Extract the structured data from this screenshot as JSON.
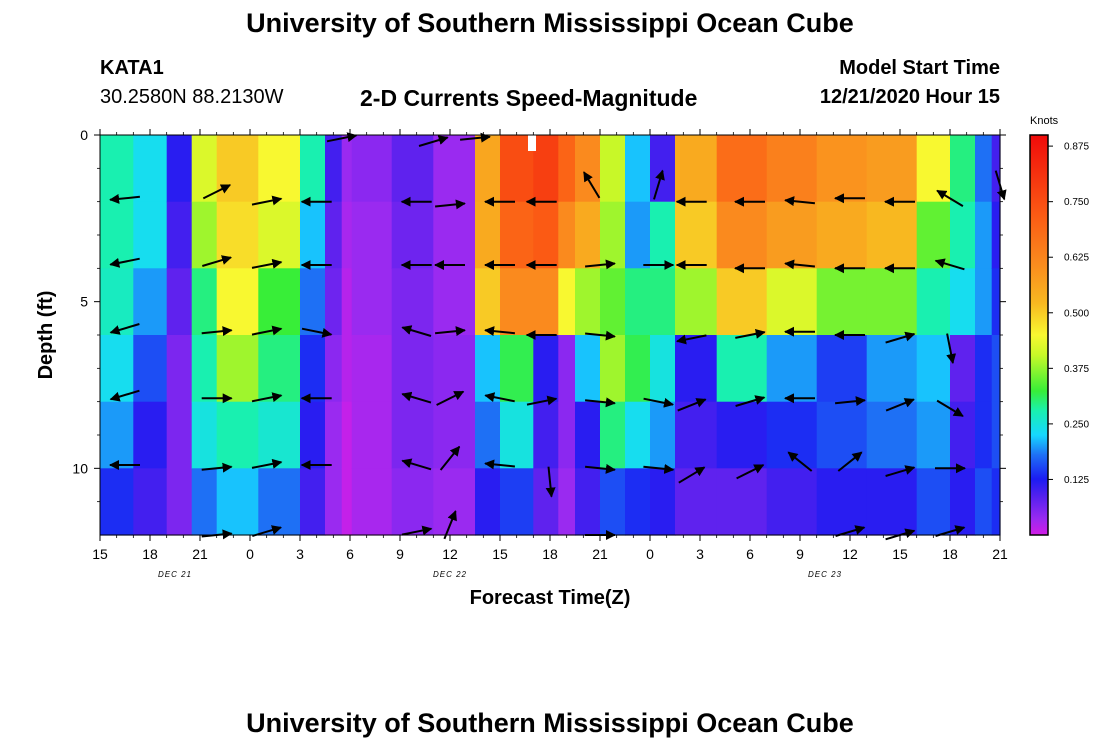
{
  "page": {
    "title": "University of Southern Mississippi Ocean Cube",
    "footer_title": "University of Southern Mississippi Ocean Cube",
    "station": "KATA1",
    "coords": "30.2580N 88.2130W",
    "chart_title": "2-D Currents Speed-Magnitude",
    "model_start_label": "Model Start Time",
    "model_start_value": "12/21/2020 Hour 15"
  },
  "chart_data": {
    "type": "heatmap",
    "title": "2-D Currents Speed-Magnitude",
    "xlabel": "Forecast Time(Z)",
    "ylabel": "Depth (ft)",
    "xlim": [
      15,
      69
    ],
    "ylim": [
      0,
      12
    ],
    "x_ticks": [
      {
        "x": 15,
        "label": "15"
      },
      {
        "x": 18,
        "label": "18"
      },
      {
        "x": 21,
        "label": "21"
      },
      {
        "x": 24,
        "label": "0"
      },
      {
        "x": 27,
        "label": "3"
      },
      {
        "x": 30,
        "label": "6"
      },
      {
        "x": 33,
        "label": "9"
      },
      {
        "x": 36,
        "label": "12"
      },
      {
        "x": 39,
        "label": "15"
      },
      {
        "x": 42,
        "label": "18"
      },
      {
        "x": 45,
        "label": "21"
      },
      {
        "x": 48,
        "label": "0"
      },
      {
        "x": 51,
        "label": "3"
      },
      {
        "x": 54,
        "label": "6"
      },
      {
        "x": 57,
        "label": "9"
      },
      {
        "x": 60,
        "label": "12"
      },
      {
        "x": 63,
        "label": "15"
      },
      {
        "x": 66,
        "label": "18"
      },
      {
        "x": 69,
        "label": "21"
      }
    ],
    "date_labels": [
      {
        "x": 19.5,
        "label": "DEC 21"
      },
      {
        "x": 36.0,
        "label": "DEC 22"
      },
      {
        "x": 58.5,
        "label": "DEC 23"
      }
    ],
    "y_ticks": [
      {
        "y": 0,
        "label": "0"
      },
      {
        "y": 5,
        "label": "5"
      },
      {
        "y": 10,
        "label": "10"
      }
    ],
    "colorbar": {
      "unit": "Knots",
      "min": 0,
      "max": 0.9,
      "ticks": [
        "0.875",
        "0.750",
        "0.625",
        "0.500",
        "0.375",
        "0.250",
        "0.125"
      ],
      "tick_values": [
        0.875,
        0.75,
        0.625,
        0.5,
        0.375,
        0.25,
        0.125
      ]
    },
    "depth_bands_ft": [
      0,
      2,
      4,
      6,
      8,
      10,
      12
    ],
    "speed_profiles_knots": [
      {
        "x_range": [
          15,
          17
        ],
        "values": [
          0.28,
          0.28,
          0.27,
          0.24,
          0.2,
          0.14
        ]
      },
      {
        "x_range": [
          17,
          19
        ],
        "values": [
          0.24,
          0.24,
          0.2,
          0.16,
          0.12,
          0.1
        ]
      },
      {
        "x_range": [
          19,
          20.5
        ],
        "values": [
          0.12,
          0.1,
          0.08,
          0.06,
          0.06,
          0.06
        ]
      },
      {
        "x_range": [
          20.5,
          22
        ],
        "values": [
          0.42,
          0.38,
          0.3,
          0.28,
          0.25,
          0.18
        ]
      },
      {
        "x_range": [
          22,
          24.5
        ],
        "values": [
          0.5,
          0.48,
          0.45,
          0.38,
          0.28,
          0.22
        ]
      },
      {
        "x_range": [
          24.5,
          27
        ],
        "values": [
          0.45,
          0.42,
          0.33,
          0.3,
          0.26,
          0.18
        ]
      },
      {
        "x_range": [
          27,
          28.5
        ],
        "values": [
          0.28,
          0.22,
          0.18,
          0.14,
          0.12,
          0.1
        ]
      },
      {
        "x_range": [
          28.5,
          29.5
        ],
        "values": [
          0.1,
          0.08,
          0.07,
          0.05,
          0.04,
          0.04
        ]
      },
      {
        "x_range": [
          29.5,
          30.1
        ],
        "values": [
          0.04,
          0.03,
          0.02,
          0.02,
          0.01,
          0.01
        ]
      },
      {
        "x_range": [
          30.1,
          32.5
        ],
        "values": [
          0.05,
          0.04,
          0.04,
          0.03,
          0.03,
          0.03
        ]
      },
      {
        "x_range": [
          32.5,
          35
        ],
        "values": [
          0.08,
          0.07,
          0.06,
          0.06,
          0.06,
          0.05
        ]
      },
      {
        "x_range": [
          35,
          37.5
        ],
        "values": [
          0.04,
          0.04,
          0.04,
          0.05,
          0.05,
          0.04
        ]
      },
      {
        "x_range": [
          37.5,
          39
        ],
        "values": [
          0.56,
          0.55,
          0.5,
          0.22,
          0.18,
          0.12
        ]
      },
      {
        "x_range": [
          39,
          41
        ],
        "values": [
          0.75,
          0.7,
          0.62,
          0.32,
          0.25,
          0.15
        ]
      },
      {
        "x_range": [
          41,
          42.5
        ],
        "values": [
          0.78,
          0.72,
          0.62,
          0.12,
          0.1,
          0.08
        ]
      },
      {
        "x_range": [
          42.5,
          43.5
        ],
        "values": [
          0.7,
          0.62,
          0.45,
          0.05,
          0.05,
          0.04
        ]
      },
      {
        "x_range": [
          43.5,
          45
        ],
        "values": [
          0.62,
          0.55,
          0.38,
          0.22,
          0.12,
          0.1
        ]
      },
      {
        "x_range": [
          45,
          46.5
        ],
        "values": [
          0.4,
          0.38,
          0.35,
          0.38,
          0.3,
          0.16
        ]
      },
      {
        "x_range": [
          46.5,
          48
        ],
        "values": [
          0.22,
          0.2,
          0.3,
          0.32,
          0.24,
          0.14
        ]
      },
      {
        "x_range": [
          48,
          49.5
        ],
        "values": [
          0.1,
          0.28,
          0.3,
          0.25,
          0.2,
          0.12
        ]
      },
      {
        "x_range": [
          49.5,
          52
        ],
        "values": [
          0.55,
          0.5,
          0.38,
          0.12,
          0.1,
          0.08
        ]
      },
      {
        "x_range": [
          52,
          55
        ],
        "values": [
          0.68,
          0.62,
          0.5,
          0.28,
          0.12,
          0.08
        ]
      },
      {
        "x_range": [
          55,
          58
        ],
        "values": [
          0.64,
          0.58,
          0.42,
          0.2,
          0.14,
          0.1
        ]
      },
      {
        "x_range": [
          58,
          61
        ],
        "values": [
          0.6,
          0.55,
          0.36,
          0.15,
          0.16,
          0.12
        ]
      },
      {
        "x_range": [
          61,
          64
        ],
        "values": [
          0.58,
          0.52,
          0.36,
          0.2,
          0.18,
          0.12
        ]
      },
      {
        "x_range": [
          64,
          66
        ],
        "values": [
          0.45,
          0.35,
          0.28,
          0.22,
          0.2,
          0.16
        ]
      },
      {
        "x_range": [
          66,
          67.5
        ],
        "values": [
          0.3,
          0.28,
          0.24,
          0.08,
          0.1,
          0.12
        ]
      },
      {
        "x_range": [
          67.5,
          68.5
        ],
        "values": [
          0.18,
          0.2,
          0.2,
          0.14,
          0.14,
          0.16
        ]
      },
      {
        "x_range": [
          68.5,
          69
        ],
        "values": [
          0.1,
          0.12,
          0.14,
          0.16,
          0.16,
          0.14
        ]
      }
    ],
    "vectors": [
      {
        "x": 16.5,
        "d": 1.9,
        "dx": -1,
        "dy": -0.1
      },
      {
        "x": 16.5,
        "d": 3.8,
        "dx": -1,
        "dy": -0.2
      },
      {
        "x": 16.5,
        "d": 5.8,
        "dx": -1,
        "dy": -0.3
      },
      {
        "x": 16.5,
        "d": 7.8,
        "dx": -1,
        "dy": -0.3
      },
      {
        "x": 16.5,
        "d": 9.9,
        "dx": -1,
        "dy": 0
      },
      {
        "x": 22,
        "d": 1.7,
        "dx": 1,
        "dy": 0.5
      },
      {
        "x": 22,
        "d": 3.8,
        "dx": 1,
        "dy": 0.3
      },
      {
        "x": 22,
        "d": 5.9,
        "dx": 1,
        "dy": 0.1
      },
      {
        "x": 22,
        "d": 7.9,
        "dx": 1,
        "dy": 0
      },
      {
        "x": 22,
        "d": 10,
        "dx": 1,
        "dy": 0.1
      },
      {
        "x": 22,
        "d": 12,
        "dx": 1,
        "dy": 0.1
      },
      {
        "x": 25,
        "d": 2,
        "dx": 1,
        "dy": 0.2
      },
      {
        "x": 25,
        "d": 3.9,
        "dx": 1,
        "dy": 0.2
      },
      {
        "x": 25,
        "d": 5.9,
        "dx": 1,
        "dy": 0.2
      },
      {
        "x": 25,
        "d": 7.9,
        "dx": 1,
        "dy": 0.2
      },
      {
        "x": 25,
        "d": 9.9,
        "dx": 1,
        "dy": 0.2
      },
      {
        "x": 25,
        "d": 11.9,
        "dx": 1,
        "dy": 0.3
      },
      {
        "x": 28,
        "d": 2,
        "dx": -1,
        "dy": 0
      },
      {
        "x": 28,
        "d": 3.9,
        "dx": -1,
        "dy": 0
      },
      {
        "x": 28,
        "d": 5.9,
        "dx": 1,
        "dy": -0.2
      },
      {
        "x": 28,
        "d": 7.9,
        "dx": -1,
        "dy": 0
      },
      {
        "x": 28,
        "d": 9.9,
        "dx": -1,
        "dy": 0
      },
      {
        "x": 29.5,
        "d": 0.1,
        "dx": 1,
        "dy": 0.2
      },
      {
        "x": 34,
        "d": 2,
        "dx": -1,
        "dy": 0
      },
      {
        "x": 34,
        "d": 3.9,
        "dx": -1,
        "dy": 0
      },
      {
        "x": 34,
        "d": 5.9,
        "dx": -1,
        "dy": 0.3
      },
      {
        "x": 34,
        "d": 7.9,
        "dx": -1,
        "dy": 0.3
      },
      {
        "x": 34,
        "d": 9.9,
        "dx": -1,
        "dy": 0.3
      },
      {
        "x": 34,
        "d": 11.9,
        "dx": 1,
        "dy": 0.2
      },
      {
        "x": 35,
        "d": 0.2,
        "dx": 1,
        "dy": 0.3
      },
      {
        "x": 37.5,
        "d": 0.1,
        "dx": 1,
        "dy": 0.1
      },
      {
        "x": 36,
        "d": 2.1,
        "dx": 1,
        "dy": 0.1
      },
      {
        "x": 36,
        "d": 3.9,
        "dx": -1,
        "dy": 0
      },
      {
        "x": 36,
        "d": 5.9,
        "dx": 1,
        "dy": 0.1
      },
      {
        "x": 36,
        "d": 7.9,
        "dx": 1,
        "dy": 0.5
      },
      {
        "x": 36,
        "d": 9.7,
        "dx": 0.8,
        "dy": 1
      },
      {
        "x": 36,
        "d": 11.7,
        "dx": 0.4,
        "dy": 1
      },
      {
        "x": 39,
        "d": 2,
        "dx": -1,
        "dy": 0
      },
      {
        "x": 39,
        "d": 3.9,
        "dx": -1,
        "dy": 0
      },
      {
        "x": 39,
        "d": 5.9,
        "dx": -1,
        "dy": 0.1
      },
      {
        "x": 39,
        "d": 7.9,
        "dx": -1,
        "dy": 0.2
      },
      {
        "x": 39,
        "d": 9.9,
        "dx": -1,
        "dy": 0.1
      },
      {
        "x": 41.5,
        "d": 2,
        "dx": -1,
        "dy": 0
      },
      {
        "x": 41.5,
        "d": 3.9,
        "dx": -1,
        "dy": 0
      },
      {
        "x": 41.5,
        "d": 6,
        "dx": -1,
        "dy": 0
      },
      {
        "x": 41.5,
        "d": 8,
        "dx": 1,
        "dy": 0.2
      },
      {
        "x": 42,
        "d": 10.4,
        "dx": 0.1,
        "dy": -1
      },
      {
        "x": 44.5,
        "d": 1.5,
        "dx": -0.6,
        "dy": 1
      },
      {
        "x": 45,
        "d": 3.9,
        "dx": 1,
        "dy": 0.1
      },
      {
        "x": 45,
        "d": 6,
        "dx": 1,
        "dy": -0.1
      },
      {
        "x": 45,
        "d": 8,
        "dx": 1,
        "dy": -0.1
      },
      {
        "x": 45,
        "d": 10,
        "dx": 1,
        "dy": -0.1
      },
      {
        "x": 45,
        "d": 12,
        "dx": 1,
        "dy": 0
      },
      {
        "x": 48.5,
        "d": 1.5,
        "dx": 0.3,
        "dy": 1
      },
      {
        "x": 48.5,
        "d": 3.9,
        "dx": 1,
        "dy": 0
      },
      {
        "x": 48.5,
        "d": 8,
        "dx": 1,
        "dy": -0.2
      },
      {
        "x": 48.5,
        "d": 10,
        "dx": 1,
        "dy": -0.1
      },
      {
        "x": 50.5,
        "d": 2,
        "dx": -1,
        "dy": 0
      },
      {
        "x": 50.5,
        "d": 3.9,
        "dx": -1,
        "dy": 0
      },
      {
        "x": 50.5,
        "d": 6.1,
        "dx": -1,
        "dy": -0.2
      },
      {
        "x": 50.5,
        "d": 8.1,
        "dx": 1,
        "dy": 0.4
      },
      {
        "x": 50.5,
        "d": 10.2,
        "dx": 1,
        "dy": 0.6
      },
      {
        "x": 54,
        "d": 2,
        "dx": -1,
        "dy": 0
      },
      {
        "x": 54,
        "d": 4,
        "dx": -1,
        "dy": 0
      },
      {
        "x": 54,
        "d": 6,
        "dx": 1,
        "dy": 0.2
      },
      {
        "x": 54,
        "d": 8,
        "dx": 1,
        "dy": 0.3
      },
      {
        "x": 54,
        "d": 10.1,
        "dx": 1,
        "dy": 0.5
      },
      {
        "x": 57,
        "d": 2,
        "dx": -1,
        "dy": 0.1
      },
      {
        "x": 57,
        "d": 3.9,
        "dx": -1,
        "dy": 0.1
      },
      {
        "x": 57,
        "d": 5.9,
        "dx": -1,
        "dy": 0
      },
      {
        "x": 57,
        "d": 7.9,
        "dx": -1,
        "dy": 0
      },
      {
        "x": 57,
        "d": 9.8,
        "dx": -1,
        "dy": 0.8
      },
      {
        "x": 60,
        "d": 1.9,
        "dx": -1,
        "dy": 0
      },
      {
        "x": 60,
        "d": 4,
        "dx": -1,
        "dy": 0
      },
      {
        "x": 60,
        "d": 6,
        "dx": -1,
        "dy": 0
      },
      {
        "x": 60,
        "d": 8,
        "dx": 1,
        "dy": 0.1
      },
      {
        "x": 60,
        "d": 9.8,
        "dx": 1,
        "dy": 0.8
      },
      {
        "x": 60,
        "d": 11.9,
        "dx": 1,
        "dy": 0.3
      },
      {
        "x": 63,
        "d": 2,
        "dx": -1,
        "dy": 0
      },
      {
        "x": 63,
        "d": 4,
        "dx": -1,
        "dy": 0
      },
      {
        "x": 63,
        "d": 6.1,
        "dx": 1,
        "dy": 0.3
      },
      {
        "x": 63,
        "d": 8.1,
        "dx": 1,
        "dy": 0.4
      },
      {
        "x": 63,
        "d": 10.1,
        "dx": 1,
        "dy": 0.3
      },
      {
        "x": 63,
        "d": 12,
        "dx": 1,
        "dy": 0.3
      },
      {
        "x": 66,
        "d": 1.9,
        "dx": -1,
        "dy": 0.6
      },
      {
        "x": 66,
        "d": 3.9,
        "dx": -1,
        "dy": 0.3
      },
      {
        "x": 66,
        "d": 6.4,
        "dx": 0.2,
        "dy": -1
      },
      {
        "x": 66,
        "d": 8.2,
        "dx": 1,
        "dy": -0.6
      },
      {
        "x": 66,
        "d": 10,
        "dx": 1,
        "dy": 0
      },
      {
        "x": 66,
        "d": 11.9,
        "dx": 1,
        "dy": 0.3
      },
      {
        "x": 69,
        "d": 1.5,
        "dx": 0.3,
        "dy": -1
      }
    ]
  }
}
